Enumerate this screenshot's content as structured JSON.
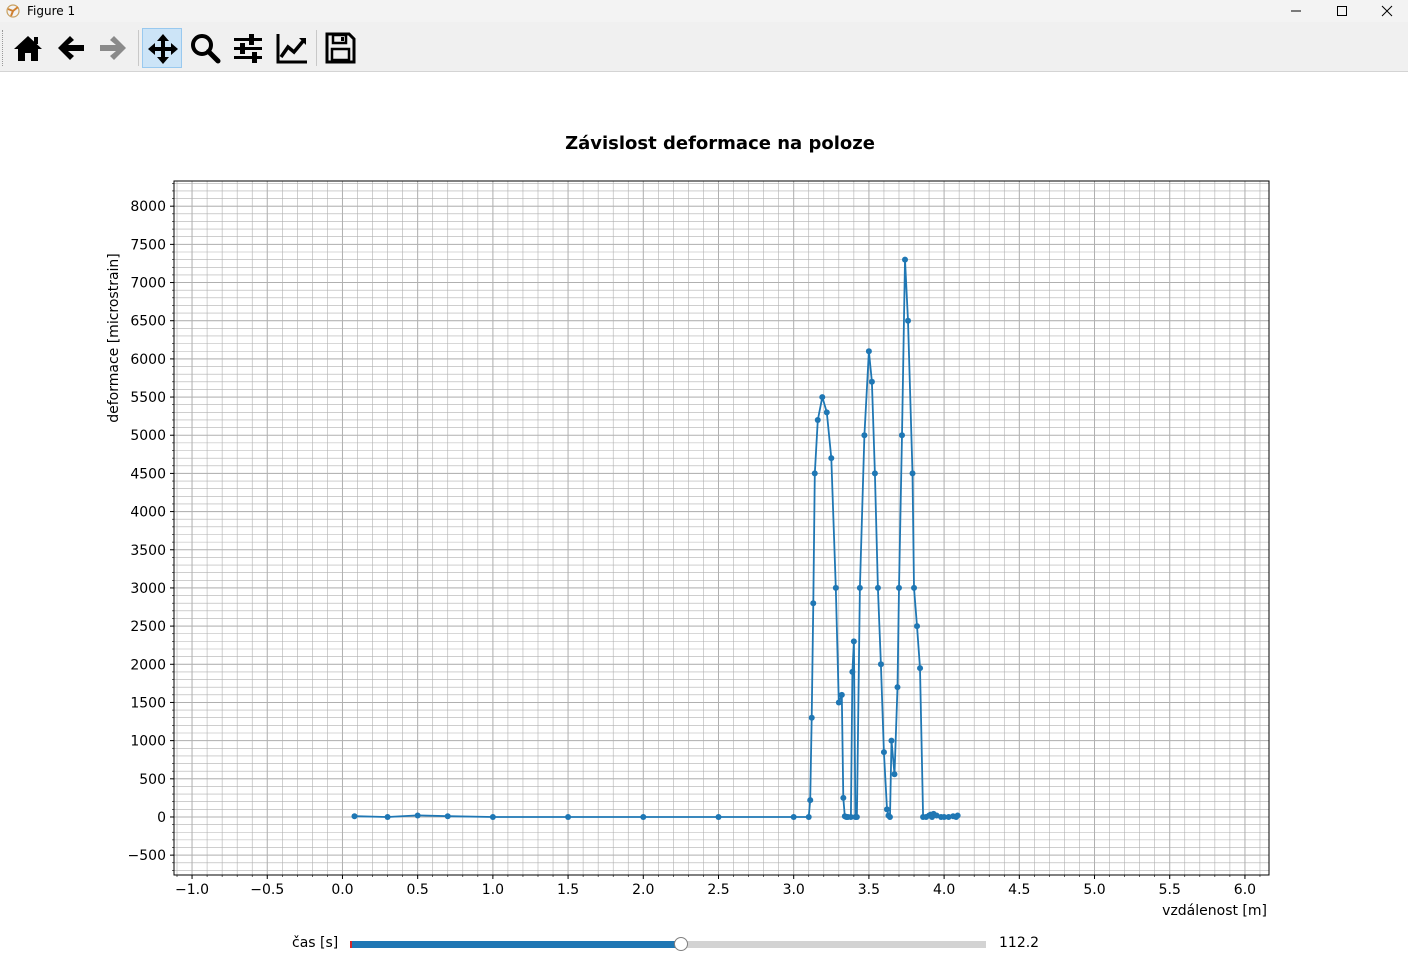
{
  "window": {
    "title": "Figure 1",
    "app_icon": "matplotlib-icon",
    "controls": [
      "minimize-icon",
      "maximize-icon",
      "close-icon"
    ]
  },
  "toolbar": {
    "buttons": [
      {
        "name": "home-button",
        "icon": "home-icon",
        "active": false
      },
      {
        "name": "back-button",
        "icon": "arrow-left-icon",
        "active": false
      },
      {
        "name": "forward-button",
        "icon": "arrow-right-icon",
        "active": false,
        "disabled": true
      },
      {
        "name": "pan-button",
        "icon": "move-arrows-icon",
        "active": true
      },
      {
        "name": "zoom-button",
        "icon": "magnifier-icon",
        "active": false
      },
      {
        "name": "subplots-button",
        "icon": "sliders-icon",
        "active": false
      },
      {
        "name": "edit-axes-button",
        "icon": "line-chart-icon",
        "active": false
      },
      {
        "name": "save-button",
        "icon": "floppy-disk-icon",
        "active": false
      }
    ]
  },
  "colors": {
    "series": "#1f77b4",
    "grid": "#b0b0b0",
    "slider_track": "#d3d3d3",
    "slider_fill": "#1f77b4",
    "slider_initial_marker": "#d62728"
  },
  "chart_data": {
    "type": "line",
    "title": "Závislost deformace na poloze",
    "xlabel": "vzdálenost [m]",
    "ylabel": "deformace [microstrain]",
    "xlim": [
      -1.12,
      6.16
    ],
    "ylim": [
      -760,
      8330
    ],
    "xticks": [
      -1.0,
      -0.5,
      0.0,
      0.5,
      1.0,
      1.5,
      2.0,
      2.5,
      3.0,
      3.5,
      4.0,
      4.5,
      5.0,
      5.5,
      6.0
    ],
    "xtick_labels": [
      "−1.0",
      "−0.5",
      "0.0",
      "0.5",
      "1.0",
      "1.5",
      "2.0",
      "2.5",
      "3.0",
      "3.5",
      "4.0",
      "4.5",
      "5.0",
      "5.5",
      "6.0"
    ],
    "yticks": [
      -500,
      0,
      500,
      1000,
      1500,
      2000,
      2500,
      3000,
      3500,
      4000,
      4500,
      5000,
      5500,
      6000,
      6500,
      7000,
      7500,
      8000
    ],
    "ytick_labels": [
      "−500",
      "0",
      "500",
      "1000",
      "1500",
      "2000",
      "2500",
      "3000",
      "3500",
      "4000",
      "4500",
      "5000",
      "5500",
      "6000",
      "6500",
      "7000",
      "7500",
      "8000"
    ],
    "grid": true,
    "minor_grid": true,
    "marker": "o",
    "series": [
      {
        "x": [
          0.08,
          0.3,
          0.5,
          0.7,
          1.0,
          1.5,
          2.0,
          2.5,
          3.0,
          3.1,
          3.11,
          3.12,
          3.13,
          3.14,
          3.16,
          3.19,
          3.22,
          3.25,
          3.28,
          3.3,
          3.32,
          3.33,
          3.34,
          3.35,
          3.36,
          3.38,
          3.39,
          3.4,
          3.41,
          3.42,
          3.44,
          3.47,
          3.5,
          3.52,
          3.54,
          3.56,
          3.58,
          3.6,
          3.62,
          3.63,
          3.64,
          3.65,
          3.67,
          3.69,
          3.7,
          3.72,
          3.74,
          3.76,
          3.79,
          3.8,
          3.82,
          3.84,
          3.86,
          3.88,
          3.9,
          3.91,
          3.92,
          3.93,
          3.95,
          3.98,
          4.0,
          4.03,
          4.06,
          4.08,
          4.09
        ],
        "y": [
          10,
          0,
          20,
          10,
          0,
          0,
          0,
          0,
          0,
          0,
          220,
          1300,
          2800,
          4500,
          5200,
          5500,
          5300,
          4700,
          3000,
          1500,
          1600,
          250,
          10,
          0,
          0,
          0,
          1900,
          2300,
          0,
          0,
          3000,
          5000,
          6100,
          5700,
          4500,
          3000,
          2000,
          850,
          100,
          20,
          0,
          1000,
          560,
          1700,
          3000,
          5000,
          7300,
          6500,
          4500,
          3000,
          2500,
          1950,
          0,
          0,
          20,
          30,
          0,
          40,
          20,
          0,
          0,
          0,
          10,
          0,
          20
        ]
      }
    ]
  },
  "slider": {
    "label": "čas [s]",
    "value_text": "112.2",
    "fraction": 0.52
  }
}
